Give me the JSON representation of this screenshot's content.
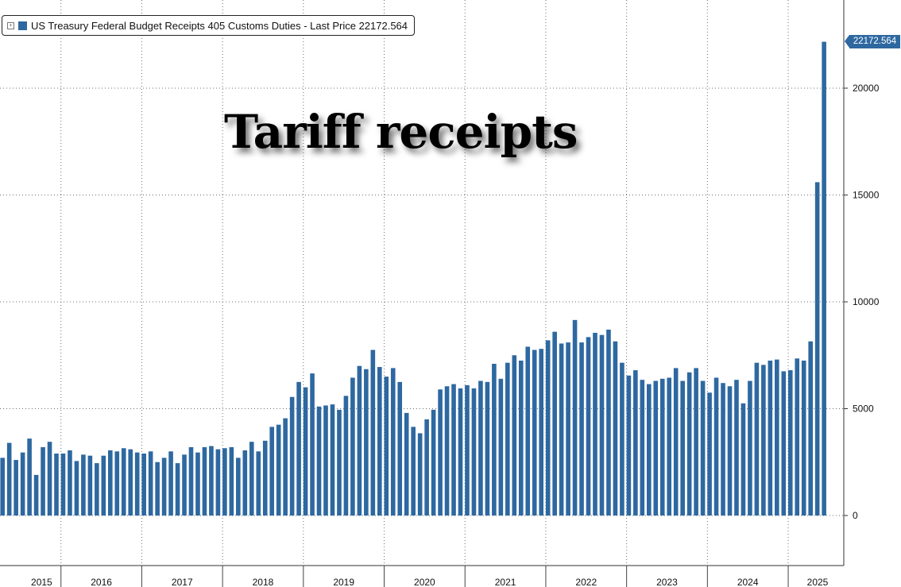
{
  "legend": {
    "toggle": "+",
    "label": "US Treasury Federal Budget Receipts 405 Customs Duties - Last Price 22172.564"
  },
  "overlay_title": "Tariff receipts",
  "last_price_label": "22172.564",
  "colors": {
    "bar": "#2e68a0",
    "grid": "#6f6f6f",
    "background": "#ffffff"
  },
  "chart_data": {
    "type": "bar",
    "title": "",
    "xlabel": "",
    "ylabel": "",
    "ylim": [
      -2000,
      24000
    ],
    "yticks": [
      0,
      5000,
      10000,
      15000,
      20000
    ],
    "grid": true,
    "legend_position": "top-left",
    "year_labels": [
      "2015",
      "2016",
      "2017",
      "2018",
      "2019",
      "2020",
      "2021",
      "2022",
      "2023",
      "2024",
      "2025"
    ],
    "series": [
      {
        "name": "US Treasury Federal Budget Receipts 405 Customs Duties",
        "values": [
          2700,
          3400,
          2600,
          2950,
          3600,
          1900,
          3200,
          3450,
          2900,
          2900,
          3050,
          2550,
          2850,
          2800,
          2450,
          2800,
          3050,
          3000,
          3150,
          3100,
          2950,
          2900,
          3000,
          2500,
          2700,
          3000,
          2450,
          2850,
          3200,
          2950,
          3200,
          3250,
          3100,
          3150,
          3200,
          2700,
          3050,
          3450,
          3000,
          3500,
          4150,
          4250,
          4550,
          5550,
          6250,
          6000,
          6650,
          5100,
          5150,
          5200,
          4950,
          5600,
          6450,
          7000,
          6850,
          7750,
          6950,
          6500,
          6900,
          6250,
          4800,
          4150,
          3850,
          4500,
          4950,
          5900,
          6050,
          6150,
          5950,
          6100,
          5950,
          6300,
          6250,
          7100,
          6400,
          7150,
          7500,
          7250,
          7900,
          7750,
          7800,
          8200,
          8600,
          8050,
          8100,
          9150,
          8100,
          8350,
          8550,
          8450,
          8700,
          8150,
          7150,
          6550,
          6800,
          6350,
          6150,
          6300,
          6400,
          6450,
          6900,
          6300,
          6700,
          6900,
          6300,
          5750,
          6450,
          6200,
          6050,
          6350,
          5250,
          6300,
          7150,
          7050,
          7250,
          7300,
          6750,
          6800,
          7350,
          7250,
          8150,
          15600,
          22172.564
        ]
      }
    ]
  }
}
